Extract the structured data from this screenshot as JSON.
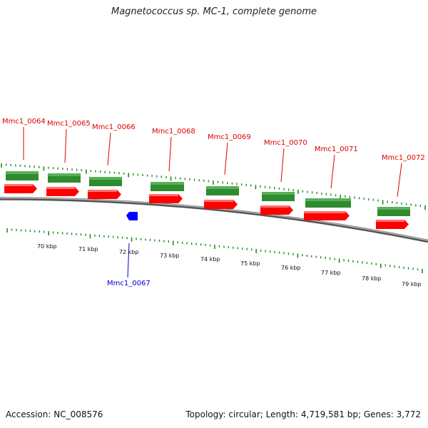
{
  "title": "Magnetococcus sp. MC-1, complete genome",
  "footer": {
    "accession": "Accession: NC_008576",
    "summary": "Topology: circular; Length: 4,719,581 bp; Genes: 3,772"
  },
  "colors": {
    "gene_label": "#dd0000",
    "gene_fill": "#ff0000",
    "cds_fill": "#2e8b2e",
    "reverse_gene_label": "#0000cc",
    "reverse_gene_fill": "#0000ff",
    "tick": "#228b22",
    "backbone": "#808080"
  },
  "forward_genes": [
    {
      "label": "Mmc1_0064"
    },
    {
      "label": "Mmc1_0065"
    },
    {
      "label": "Mmc1_0066"
    },
    {
      "label": "Mmc1_0068"
    },
    {
      "label": "Mmc1_0069"
    },
    {
      "label": "Mmc1_0070"
    },
    {
      "label": "Mmc1_0071"
    },
    {
      "label": "Mmc1_0072"
    }
  ],
  "reverse_genes": [
    {
      "label": "Mmc1_0067"
    }
  ],
  "scale_labels": [
    "70 kbp",
    "71 kbp",
    "72 kbp",
    "73 kbp",
    "74 kbp",
    "75 kbp",
    "76 kbp",
    "77 kbp",
    "78 kbp",
    "79 kbp"
  ]
}
